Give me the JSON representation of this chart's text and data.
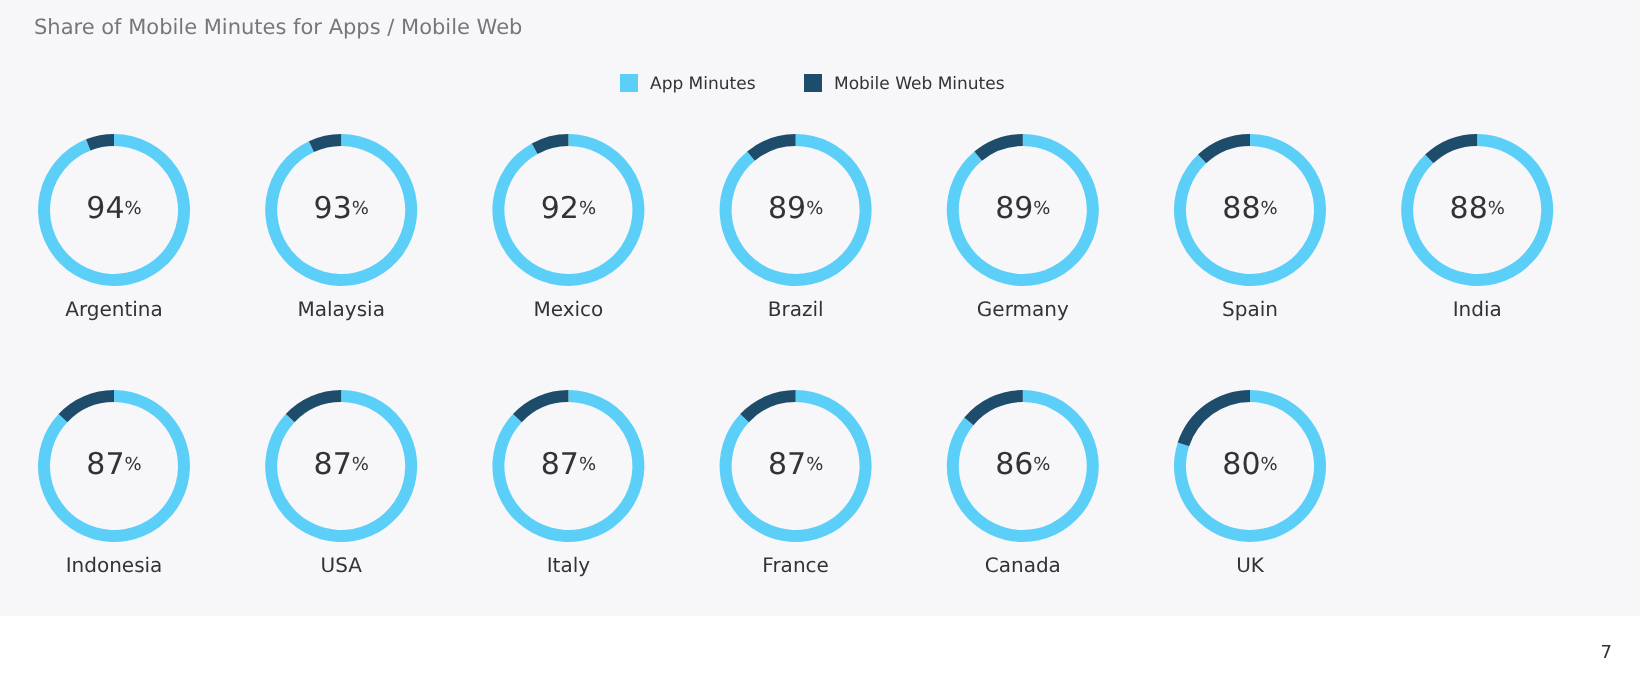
{
  "chart_data": [
    {
      "type": "donut",
      "title": "Argentina",
      "categories": [
        "App Minutes",
        "Mobile Web Minutes"
      ],
      "values": [
        94,
        6
      ],
      "colors": [
        "#5ccff8",
        "#1e4d6b"
      ],
      "value_labels": [
        "94%",
        null
      ],
      "legend": "top",
      "annotations": [
        "Share of Mobile Minutes for Apps / Mobile Web",
        "7"
      ]
    },
    {
      "type": "donut",
      "title": "Malaysia",
      "categories": [
        null,
        null
      ],
      "values": [
        93,
        7
      ],
      "colors": [
        "#5ccff8",
        "#1e4d6b"
      ],
      "value_labels": [
        "93%",
        null
      ]
    },
    {
      "type": "donut",
      "title": "Mexico",
      "categories": [
        null,
        null
      ],
      "values": [
        92,
        8
      ],
      "colors": [
        "#5ccff8",
        "#1e4d6b"
      ],
      "value_labels": [
        "92%",
        null
      ]
    },
    {
      "type": "donut",
      "title": "Brazil",
      "categories": [
        null,
        null
      ],
      "values": [
        89,
        11
      ],
      "colors": [
        "#5ccff8",
        "#1e4d6b"
      ],
      "value_labels": [
        "89%",
        null
      ]
    },
    {
      "type": "donut",
      "title": "Germany",
      "categories": [
        null,
        null
      ],
      "values": [
        89,
        11
      ],
      "colors": [
        "#5ccff8",
        "#1e4d6b"
      ],
      "value_labels": [
        "89%",
        null
      ]
    },
    {
      "type": "donut",
      "title": "Spain",
      "categories": [
        null,
        null
      ],
      "values": [
        88,
        12
      ],
      "colors": [
        "#5ccff8",
        "#1e4d6b"
      ],
      "value_labels": [
        "88%",
        null
      ]
    },
    {
      "type": "donut",
      "title": "India",
      "categories": [
        null,
        null
      ],
      "values": [
        88,
        12
      ],
      "colors": [
        "#5ccff8",
        "#1e4d6b"
      ],
      "value_labels": [
        "88%",
        null
      ]
    },
    {
      "type": "donut",
      "title": "Indonesia",
      "categories": [
        null,
        null
      ],
      "values": [
        87,
        13
      ],
      "colors": [
        "#5ccff8",
        "#1e4d6b"
      ],
      "value_labels": [
        "87%",
        null
      ]
    },
    {
      "type": "donut",
      "title": "USA",
      "categories": [
        null,
        null
      ],
      "values": [
        87,
        13
      ],
      "colors": [
        "#5ccff8",
        "#1e4d6b"
      ],
      "value_labels": [
        "87%",
        null
      ]
    },
    {
      "type": "donut",
      "title": "Italy",
      "categories": [
        null,
        null
      ],
      "values": [
        87,
        13
      ],
      "colors": [
        "#5ccff8",
        "#1e4d6b"
      ],
      "value_labels": [
        "87%",
        null
      ]
    },
    {
      "type": "donut",
      "title": "France",
      "categories": [
        null,
        null
      ],
      "values": [
        87,
        13
      ],
      "colors": [
        "#5ccff8",
        "#1e4d6b"
      ],
      "value_labels": [
        "87%",
        null
      ]
    },
    {
      "type": "donut",
      "title": "Canada",
      "categories": [
        null,
        null
      ],
      "values": [
        86,
        14
      ],
      "colors": [
        "#5ccff8",
        "#1e4d6b"
      ],
      "value_labels": [
        "86%",
        null
      ]
    },
    {
      "type": "donut",
      "title": "UK",
      "categories": [
        null,
        null
      ],
      "values": [
        80,
        20
      ],
      "colors": [
        "#5ccff8",
        "#1e4d6b"
      ],
      "value_labels": [
        "80%",
        null
      ]
    }
  ]
}
